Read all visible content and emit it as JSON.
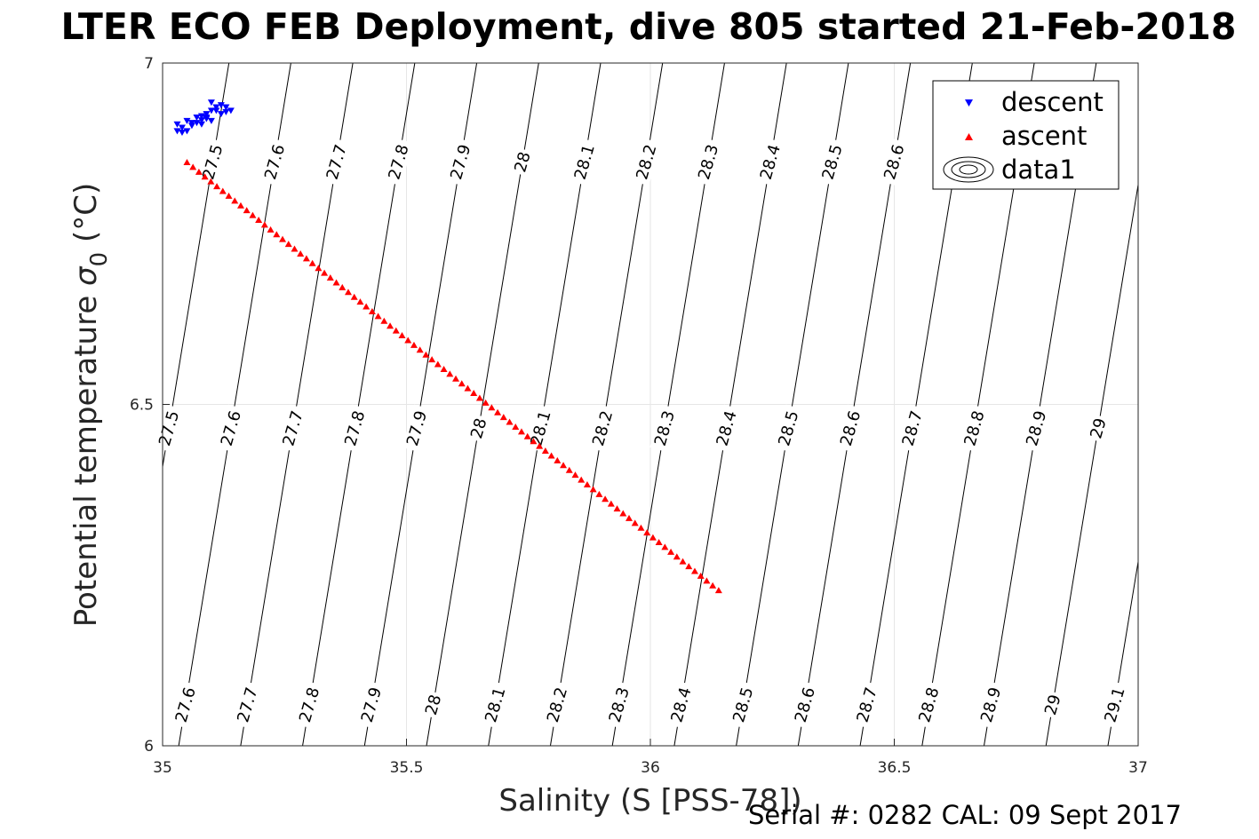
{
  "chart_data": {
    "type": "scatter",
    "title": "LTER ECO FEB Deployment, dive 805 started 21-Feb-2018",
    "xlabel": "Salinity (S [PSS-78])",
    "ylabel_main": "Potential temperature ",
    "ylabel_sigma": "σ",
    "ylabel_sub": "0",
    "ylabel_unit": " (°C)",
    "xlim": [
      35,
      37
    ],
    "ylim": [
      6,
      7
    ],
    "xticks": [
      "35",
      "35.5",
      "36",
      "36.5",
      "37"
    ],
    "yticks": [
      "6",
      "6.5",
      "7"
    ],
    "grid": true,
    "legend_position": "top-right",
    "series": [
      {
        "name": "descent",
        "color": "#0000ff",
        "marker": "triangle-down",
        "x": [
          35.04,
          35.03,
          35.05,
          35.07,
          35.09,
          35.06,
          35.08,
          35.1,
          35.07,
          35.09,
          35.11,
          35.1,
          35.12,
          35.11,
          35.13,
          35.12,
          35.14,
          35.1,
          35.08,
          35.05,
          35.03,
          35.06,
          35.09,
          35.13,
          35.08,
          35.04
        ],
        "y": [
          6.905,
          6.91,
          6.915,
          6.912,
          6.918,
          6.908,
          6.922,
          6.93,
          6.92,
          6.925,
          6.935,
          6.942,
          6.938,
          6.93,
          6.935,
          6.925,
          6.93,
          6.915,
          6.91,
          6.9,
          6.9,
          6.912,
          6.92,
          6.928,
          6.916,
          6.898
        ]
      },
      {
        "name": "ascent",
        "color": "#ff0000",
        "marker": "triangle-up",
        "x_start": 35.05,
        "y_start": 6.855,
        "x_end": 36.14,
        "y_end": 6.228,
        "count": 90
      }
    ],
    "contours": {
      "slope_sal_per_degC": 0.23,
      "ref_temp": 6.5,
      "lines": [
        {
          "level": "27.5",
          "sal": 35.021
        },
        {
          "level": "27.6",
          "sal": 35.148
        },
        {
          "level": "27.7",
          "sal": 35.275
        },
        {
          "level": "27.8",
          "sal": 35.402
        },
        {
          "level": "27.9",
          "sal": 35.529
        },
        {
          "level": "28",
          "sal": 35.656
        },
        {
          "level": "28.1",
          "sal": 35.783
        },
        {
          "level": "28.2",
          "sal": 35.91
        },
        {
          "level": "28.3",
          "sal": 36.037
        },
        {
          "level": "28.4",
          "sal": 36.164
        },
        {
          "level": "28.5",
          "sal": 36.291
        },
        {
          "level": "28.6",
          "sal": 36.418
        },
        {
          "level": "28.7",
          "sal": 36.545
        },
        {
          "level": "28.8",
          "sal": 36.672
        },
        {
          "level": "28.9",
          "sal": 36.799
        },
        {
          "level": "29",
          "sal": 36.926
        },
        {
          "level": "29.1",
          "sal": 37.053
        }
      ],
      "label_bands": {
        "top": {
          "y": 6.855,
          "levels": [
            "27.5",
            "27.6",
            "27.7",
            "27.8",
            "27.9",
            "28",
            "28.1",
            "28.2",
            "28.3",
            "28.4",
            "28.5",
            "28.6",
            "29"
          ]
        },
        "mid": {
          "y": 6.465,
          "levels": [
            "27.5",
            "27.6",
            "27.7",
            "27.8",
            "27.9",
            "28",
            "28.1",
            "28.2",
            "28.3",
            "28.4",
            "28.5",
            "28.6",
            "28.7",
            "28.8",
            "28.9",
            "29"
          ]
        },
        "bot": {
          "y": 6.06,
          "levels": [
            "27.6",
            "27.7",
            "27.8",
            "27.9",
            "28",
            "28.1",
            "28.2",
            "28.3",
            "28.4",
            "28.5",
            "28.6",
            "28.7",
            "28.8",
            "28.9",
            "29",
            "29.1"
          ]
        }
      }
    }
  },
  "legend": {
    "descent": "descent",
    "ascent": "ascent",
    "data1": "data1"
  },
  "footer": {
    "serial": "Serial #: 0282  CAL: 09 Sept 2017"
  }
}
